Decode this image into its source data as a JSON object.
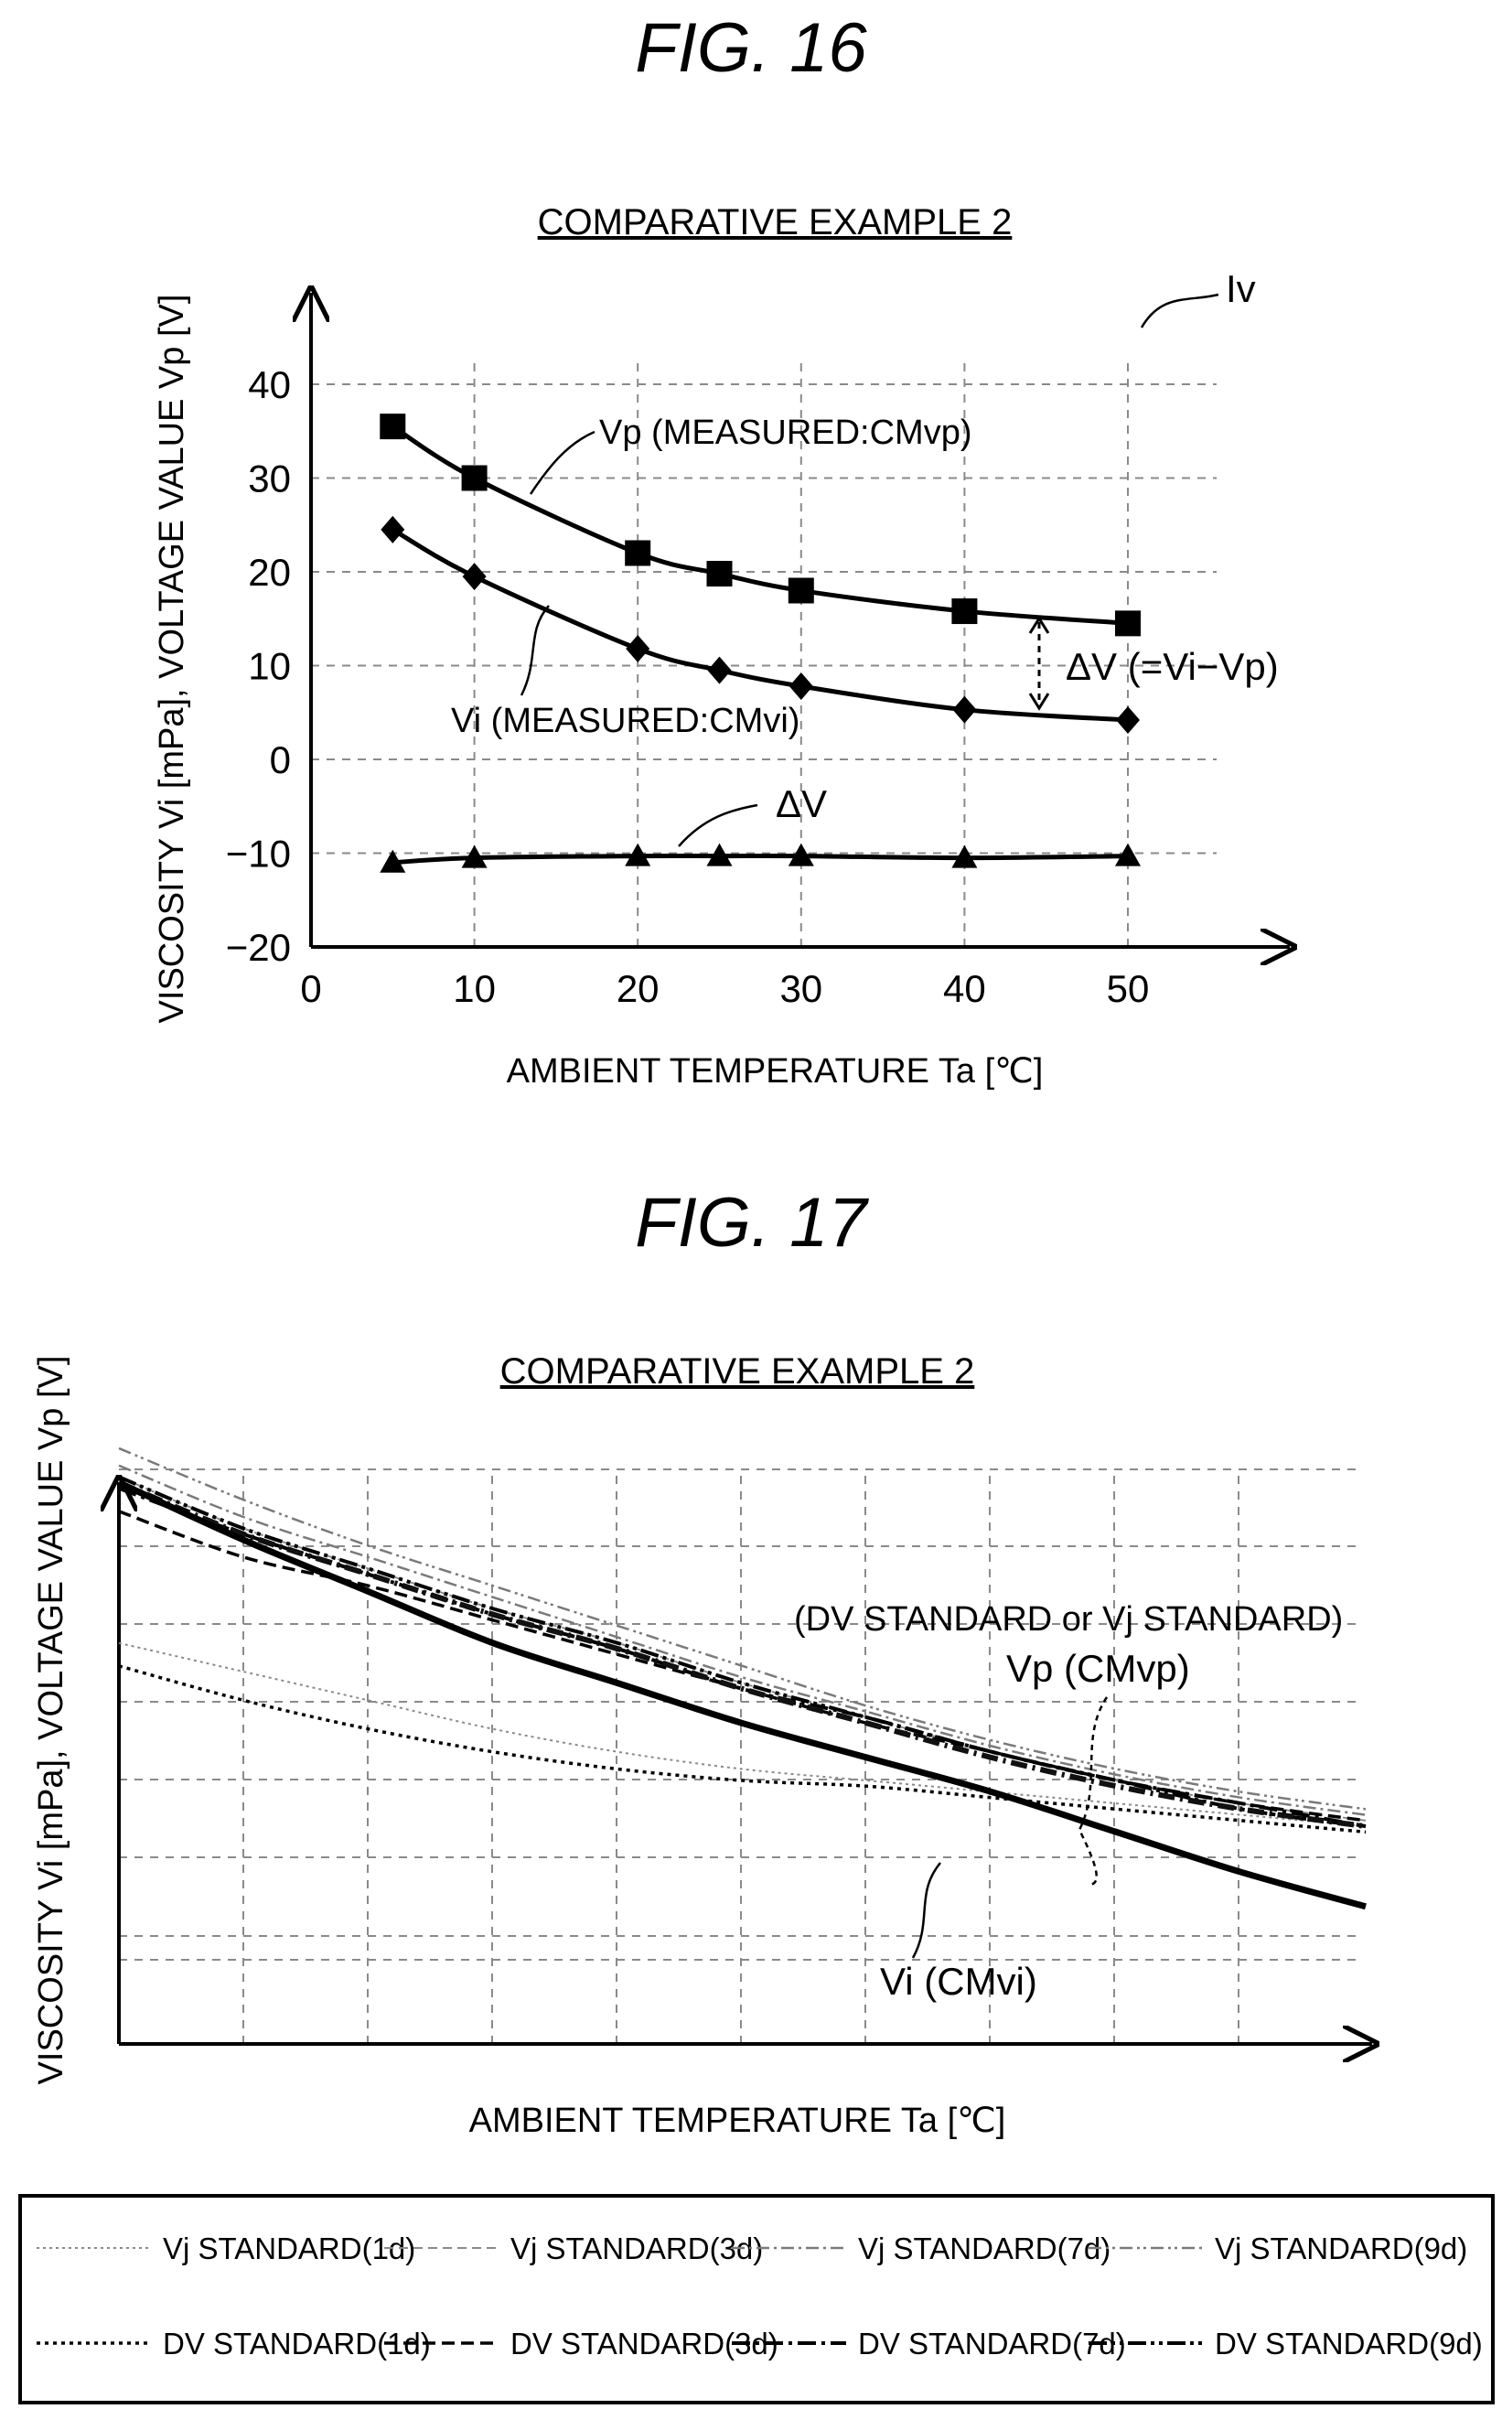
{
  "fig16": {
    "title": "FIG. 16",
    "subtitle": "COMPARATIVE EXAMPLE 2",
    "ref_label": "Iv",
    "xlabel": "AMBIENT TEMPERATURE Ta [℃]",
    "ylabel": "VISCOSITY Vi [mPa], VOLTAGE VALUE Vp [V]",
    "annotations": {
      "vp": "Vp (MEASURED:CMvp)",
      "vi": "Vi (MEASURED:CMvi)",
      "dv_bracket": "ΔV (=Vi−Vp)",
      "dv": "ΔV"
    }
  },
  "fig17": {
    "title": "FIG. 17",
    "subtitle": "COMPARATIVE EXAMPLE 2",
    "xlabel": "AMBIENT TEMPERATURE Ta [℃]",
    "ylabel": "VISCOSITY Vi [mPa], VOLTAGE VALUE Vp [V]",
    "annotations": {
      "standard": "(DV STANDARD or Vj STANDARD)",
      "vp": "Vp (CMvp)",
      "vi": "Vi (CMvi)"
    }
  },
  "legend": {
    "items": [
      {
        "label": "Vj STANDARD(1d)",
        "style": "vj1"
      },
      {
        "label": "Vj STANDARD(3d)",
        "style": "vj3"
      },
      {
        "label": "Vj STANDARD(7d)",
        "style": "vj7"
      },
      {
        "label": "Vj STANDARD(9d)",
        "style": "vj9"
      },
      {
        "label": "DV STANDARD(1d)",
        "style": "dv1"
      },
      {
        "label": "DV STANDARD(3d)",
        "style": "dv3"
      },
      {
        "label": "DV STANDARD(7d)",
        "style": "dv7"
      },
      {
        "label": "DV STANDARD(9d)",
        "style": "dv9"
      }
    ]
  },
  "chart_data": [
    {
      "type": "line",
      "title": "COMPARATIVE EXAMPLE 2",
      "xlabel": "AMBIENT TEMPERATURE Ta [℃]",
      "ylabel": "VISCOSITY Vi [mPa], VOLTAGE VALUE Vp [V]",
      "xlim": [
        0,
        50
      ],
      "ylim": [
        -20,
        40
      ],
      "xticks": [
        0,
        10,
        20,
        30,
        40,
        50
      ],
      "yticks": [
        40,
        30,
        20,
        10,
        0,
        -10,
        -20
      ],
      "grid": true,
      "series": [
        {
          "name": "Vp (MEASURED:CMvp)",
          "marker": "square",
          "x": [
            5,
            10,
            20,
            25,
            30,
            40,
            50
          ],
          "y": [
            35.5,
            30,
            22,
            19.8,
            18,
            15.8,
            14.5
          ]
        },
        {
          "name": "Vi (MEASURED:CMvi)",
          "marker": "diamond",
          "x": [
            5,
            10,
            20,
            25,
            30,
            40,
            50
          ],
          "y": [
            24.5,
            19.5,
            11.8,
            9.5,
            7.8,
            5.3,
            4.2
          ]
        },
        {
          "name": "ΔV",
          "marker": "triangle",
          "x": [
            5,
            10,
            20,
            25,
            30,
            40,
            50
          ],
          "y": [
            -11,
            -10.5,
            -10.3,
            -10.3,
            -10.3,
            -10.5,
            -10.3
          ]
        }
      ]
    },
    {
      "type": "line",
      "title": "COMPARATIVE EXAMPLE 2",
      "xlabel": "AMBIENT TEMPERATURE Ta [℃]",
      "ylabel": "VISCOSITY Vi [mPa], VOLTAGE VALUE Vp [V]",
      "xlim": [
        0,
        10
      ],
      "ylim": [
        0,
        10
      ],
      "grid": true,
      "series": [
        {
          "name": "Vi (CMvi)",
          "style": "vi",
          "x": [
            0,
            1,
            2,
            3,
            4,
            5,
            6,
            7,
            8,
            9,
            10
          ],
          "y": [
            9.8,
            8.8,
            7.9,
            7.0,
            6.3,
            5.6,
            5.0,
            4.4,
            3.7,
            3.0,
            2.4
          ]
        },
        {
          "name": "Vp (CMvp)",
          "style": "vp",
          "x": [
            0,
            1,
            2,
            3,
            4,
            5,
            6,
            7,
            8,
            9,
            10
          ],
          "y": [
            9.8,
            8.9,
            8.2,
            7.5,
            6.9,
            6.2,
            5.6,
            5.0,
            4.5,
            4.1,
            3.8
          ]
        },
        {
          "name": "Vj STANDARD(1d)",
          "style": "vj1",
          "x": [
            0,
            1,
            2,
            3,
            4,
            5,
            6,
            7,
            8,
            9,
            10
          ],
          "y": [
            7.0,
            6.5,
            6.0,
            5.5,
            5.1,
            4.8,
            4.6,
            4.4,
            4.2,
            4.0,
            3.8
          ]
        },
        {
          "name": "Vj STANDARD(3d)",
          "style": "vj3",
          "x": [
            0,
            1,
            2,
            3,
            4,
            5,
            6,
            7,
            8,
            9,
            10
          ],
          "y": [
            9.9,
            9.0,
            8.3,
            7.6,
            7.0,
            6.3,
            5.7,
            5.1,
            4.6,
            4.2,
            3.9
          ]
        },
        {
          "name": "Vj STANDARD(7d)",
          "style": "vj7",
          "x": [
            0,
            1,
            2,
            3,
            4,
            5,
            6,
            7,
            8,
            9,
            10
          ],
          "y": [
            10.1,
            9.2,
            8.5,
            7.8,
            7.1,
            6.4,
            5.8,
            5.2,
            4.7,
            4.3,
            4.0
          ]
        },
        {
          "name": "Vj STANDARD(9d)",
          "style": "vj9",
          "x": [
            0,
            1,
            2,
            3,
            4,
            5,
            6,
            7,
            8,
            9,
            10
          ],
          "y": [
            10.4,
            9.5,
            8.7,
            8.0,
            7.3,
            6.6,
            5.9,
            5.3,
            4.8,
            4.4,
            4.1
          ]
        },
        {
          "name": "DV STANDARD(1d)",
          "style": "dv1",
          "x": [
            0,
            1,
            2,
            3,
            4,
            5,
            6,
            7,
            8,
            9,
            10
          ],
          "y": [
            6.6,
            6.0,
            5.5,
            5.1,
            4.8,
            4.6,
            4.5,
            4.3,
            4.1,
            3.9,
            3.7
          ]
        },
        {
          "name": "DV STANDARD(3d)",
          "style": "dv3",
          "x": [
            0,
            1,
            2,
            3,
            4,
            5,
            6,
            7,
            8,
            9,
            10
          ],
          "y": [
            9.3,
            8.5,
            8.0,
            7.4,
            6.8,
            6.2,
            5.6,
            5.1,
            4.6,
            4.2,
            3.9
          ]
        },
        {
          "name": "DV STANDARD(7d)",
          "style": "dv7",
          "x": [
            0,
            1,
            2,
            3,
            4,
            5,
            6,
            7,
            8,
            9,
            10
          ],
          "y": [
            9.7,
            8.9,
            8.2,
            7.5,
            6.9,
            6.2,
            5.7,
            5.1,
            4.6,
            4.2,
            3.8
          ]
        },
        {
          "name": "DV STANDARD(9d)",
          "style": "dv9",
          "x": [
            0,
            1,
            2,
            3,
            4,
            5,
            6,
            7,
            8,
            9,
            10
          ],
          "y": [
            9.9,
            9.0,
            8.3,
            7.6,
            7.0,
            6.3,
            5.7,
            5.1,
            4.6,
            4.1,
            3.8
          ]
        }
      ]
    }
  ]
}
